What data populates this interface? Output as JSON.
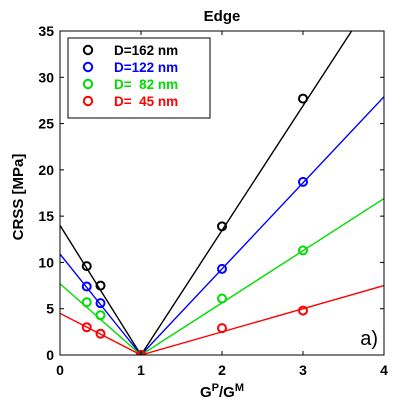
{
  "chart_data": {
    "type": "scatter",
    "title": "Edge",
    "xlabel": "G^P/G^M",
    "ylabel": "CRSS [MPa]",
    "xlim": [
      0,
      4
    ],
    "ylim": [
      0,
      35
    ],
    "xticks": [
      0,
      1,
      2,
      3,
      4
    ],
    "yticks": [
      0,
      5,
      10,
      15,
      20,
      25,
      30,
      35
    ],
    "grid": false,
    "legend_position": "top-left",
    "annotation": "a)",
    "series": [
      {
        "name": "D=162 nm",
        "color": "#000000",
        "x": [
          0.33,
          0.5,
          1,
          2,
          3
        ],
        "y": [
          9.6,
          7.5,
          0,
          13.9,
          27.7
        ],
        "fit_line": {
          "x": [
            0,
            1,
            3.6
          ],
          "y": [
            14.0,
            0,
            35.0
          ]
        }
      },
      {
        "name": "D=122 nm",
        "color": "#0000ff",
        "x": [
          0.33,
          0.5,
          1,
          2,
          3
        ],
        "y": [
          7.4,
          5.6,
          0,
          9.3,
          18.7
        ],
        "fit_line": {
          "x": [
            0,
            1,
            4
          ],
          "y": [
            10.9,
            0,
            27.9
          ]
        }
      },
      {
        "name": "D=  82 nm",
        "color": "#00dd00",
        "x": [
          0.33,
          0.5,
          1,
          2,
          3
        ],
        "y": [
          5.7,
          4.3,
          0,
          6.1,
          11.3
        ],
        "fit_line": {
          "x": [
            0,
            1,
            4
          ],
          "y": [
            7.7,
            0,
            16.9
          ]
        }
      },
      {
        "name": "D=  45 nm",
        "color": "#ff0000",
        "x": [
          0.33,
          0.5,
          1,
          2,
          3
        ],
        "y": [
          3.0,
          2.3,
          0,
          2.9,
          4.8
        ],
        "fit_line": {
          "x": [
            0,
            1,
            4
          ],
          "y": [
            4.5,
            0,
            7.5
          ]
        }
      }
    ]
  }
}
